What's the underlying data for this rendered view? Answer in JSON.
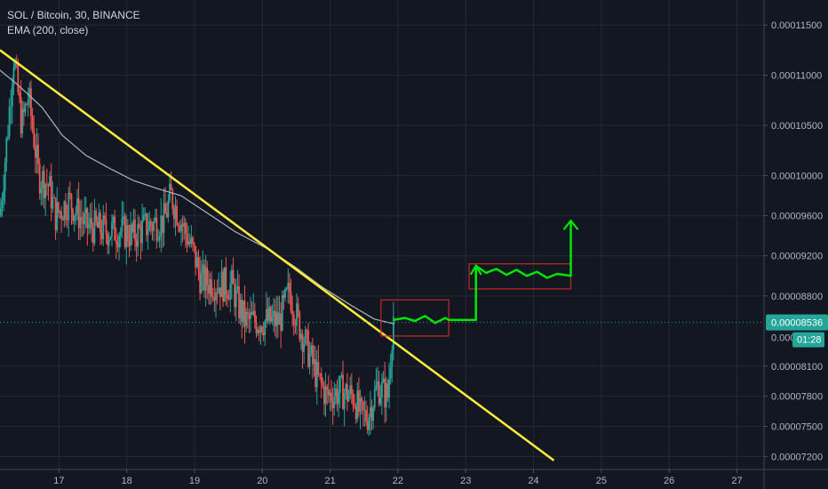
{
  "header": {
    "symbol_line": "SOL / Bitcoin, 30, BINANCE",
    "indicator_line": "EMA (200, close)"
  },
  "chart_data": {
    "type": "candlestick",
    "title": "SOL / Bitcoin, 30, BINANCE",
    "indicator": "EMA (200, close)",
    "x_ticks": [
      "17",
      "18",
      "19",
      "20",
      "21",
      "22",
      "23",
      "24",
      "25",
      "26",
      "27"
    ],
    "x_range": [
      16.13,
      27.4
    ],
    "y_ticks": [
      "0.00011500",
      "0.00011000",
      "0.00010500",
      "0.00010000",
      "0.00009600",
      "0.00009200",
      "0.00008800",
      "0.00008100",
      "0.00007800",
      "0.00007500",
      "0.00007200"
    ],
    "y_range": [
      7.05e-05,
      1.18e-05
    ],
    "current_price": 8.536e-05,
    "current_price_label": "0.00008536",
    "hidden_price_label": "0.000",
    "countdown_label": "01:28",
    "price_path": [
      [
        16.13,
        9.6e-05
      ],
      [
        16.25,
        0.000105
      ],
      [
        16.33,
        0.000112
      ],
      [
        16.45,
        0.000105
      ],
      [
        16.55,
        0.000108
      ],
      [
        16.7,
        0.0001
      ],
      [
        16.85,
        9.9e-05
      ],
      [
        16.95,
        9.6e-05
      ],
      [
        17.15,
        9.75e-05
      ],
      [
        17.4,
        9.5e-05
      ],
      [
        17.7,
        9.45e-05
      ],
      [
        17.9,
        9.45e-05
      ],
      [
        18.1,
        9.4e-05
      ],
      [
        18.3,
        9.5e-05
      ],
      [
        18.55,
        9.55e-05
      ],
      [
        18.65,
        9.8e-05
      ],
      [
        18.8,
        9.55e-05
      ],
      [
        19.0,
        9.2e-05
      ],
      [
        19.1,
        8.95e-05
      ],
      [
        19.35,
        8.92e-05
      ],
      [
        19.55,
        8.9e-05
      ],
      [
        19.65,
        8.7e-05
      ],
      [
        19.75,
        8.55e-05
      ],
      [
        20.0,
        8.55e-05
      ],
      [
        20.25,
        8.55e-05
      ],
      [
        20.4,
        8.85e-05
      ],
      [
        20.5,
        8.6e-05
      ],
      [
        20.65,
        8.3e-05
      ],
      [
        20.8,
        8e-05
      ],
      [
        20.95,
        7.8e-05
      ],
      [
        21.15,
        7.85e-05
      ],
      [
        21.35,
        7.8e-05
      ],
      [
        21.45,
        7.6e-05
      ],
      [
        21.55,
        7.6e-05
      ],
      [
        21.7,
        7.9e-05
      ],
      [
        21.85,
        7.8e-05
      ],
      [
        21.93,
        8.6e-05
      ]
    ],
    "ema_200": [
      [
        16.13,
        0.0001105
      ],
      [
        16.4,
        0.000109
      ],
      [
        16.75,
        0.0001068
      ],
      [
        17.05,
        0.000104
      ],
      [
        17.4,
        0.000102
      ],
      [
        17.75,
        0.0001007
      ],
      [
        18.1,
        9.95e-05
      ],
      [
        18.45,
        9.87e-05
      ],
      [
        18.8,
        9.8e-05
      ],
      [
        19.2,
        9.62e-05
      ],
      [
        19.6,
        9.44e-05
      ],
      [
        20.1,
        9.26e-05
      ],
      [
        20.5,
        9.08e-05
      ],
      [
        20.9,
        8.88e-05
      ],
      [
        21.3,
        8.71e-05
      ],
      [
        21.65,
        8.57e-05
      ],
      [
        21.95,
        8.52e-05
      ]
    ],
    "trendline": [
      [
        16.13,
        0.0001125
      ],
      [
        24.3,
        7.16e-05
      ]
    ],
    "projection_boxes": [
      {
        "x": [
          21.75,
          22.75
        ],
        "y": [
          8.76e-05,
          8.4e-05
        ]
      },
      {
        "x": [
          23.05,
          24.55
        ],
        "y": [
          9.12e-05,
          8.87e-05
        ]
      }
    ],
    "projection_path": [
      [
        21.93,
        8.56e-05
      ],
      [
        22.1,
        8.58e-05
      ],
      [
        22.25,
        8.55e-05
      ],
      [
        22.4,
        8.6e-05
      ],
      [
        22.55,
        8.53e-05
      ],
      [
        22.7,
        8.58e-05
      ],
      [
        22.75,
        8.56e-05
      ],
      [
        23.15,
        8.56e-05
      ],
      [
        23.15,
        9.1e-05
      ],
      [
        23.3,
        9.03e-05
      ],
      [
        23.45,
        9.07e-05
      ],
      [
        23.6,
        9.01e-05
      ],
      [
        23.75,
        9.06e-05
      ],
      [
        23.9,
        9e-05
      ],
      [
        24.05,
        9.04e-05
      ],
      [
        24.2,
        8.98e-05
      ],
      [
        24.35,
        9.02e-05
      ],
      [
        24.55,
        9e-05
      ],
      [
        24.55,
        9.55e-05
      ]
    ],
    "colors": {
      "background": "#131722",
      "grid": "#262a35",
      "up": "#26a69a",
      "down": "#ef5350",
      "ema": "#b2b5be",
      "trendline": "#ffeb3b",
      "projection": "#00e600",
      "box": "#c62828",
      "price_line": "#26a69a",
      "text": "#b2b5be"
    }
  }
}
